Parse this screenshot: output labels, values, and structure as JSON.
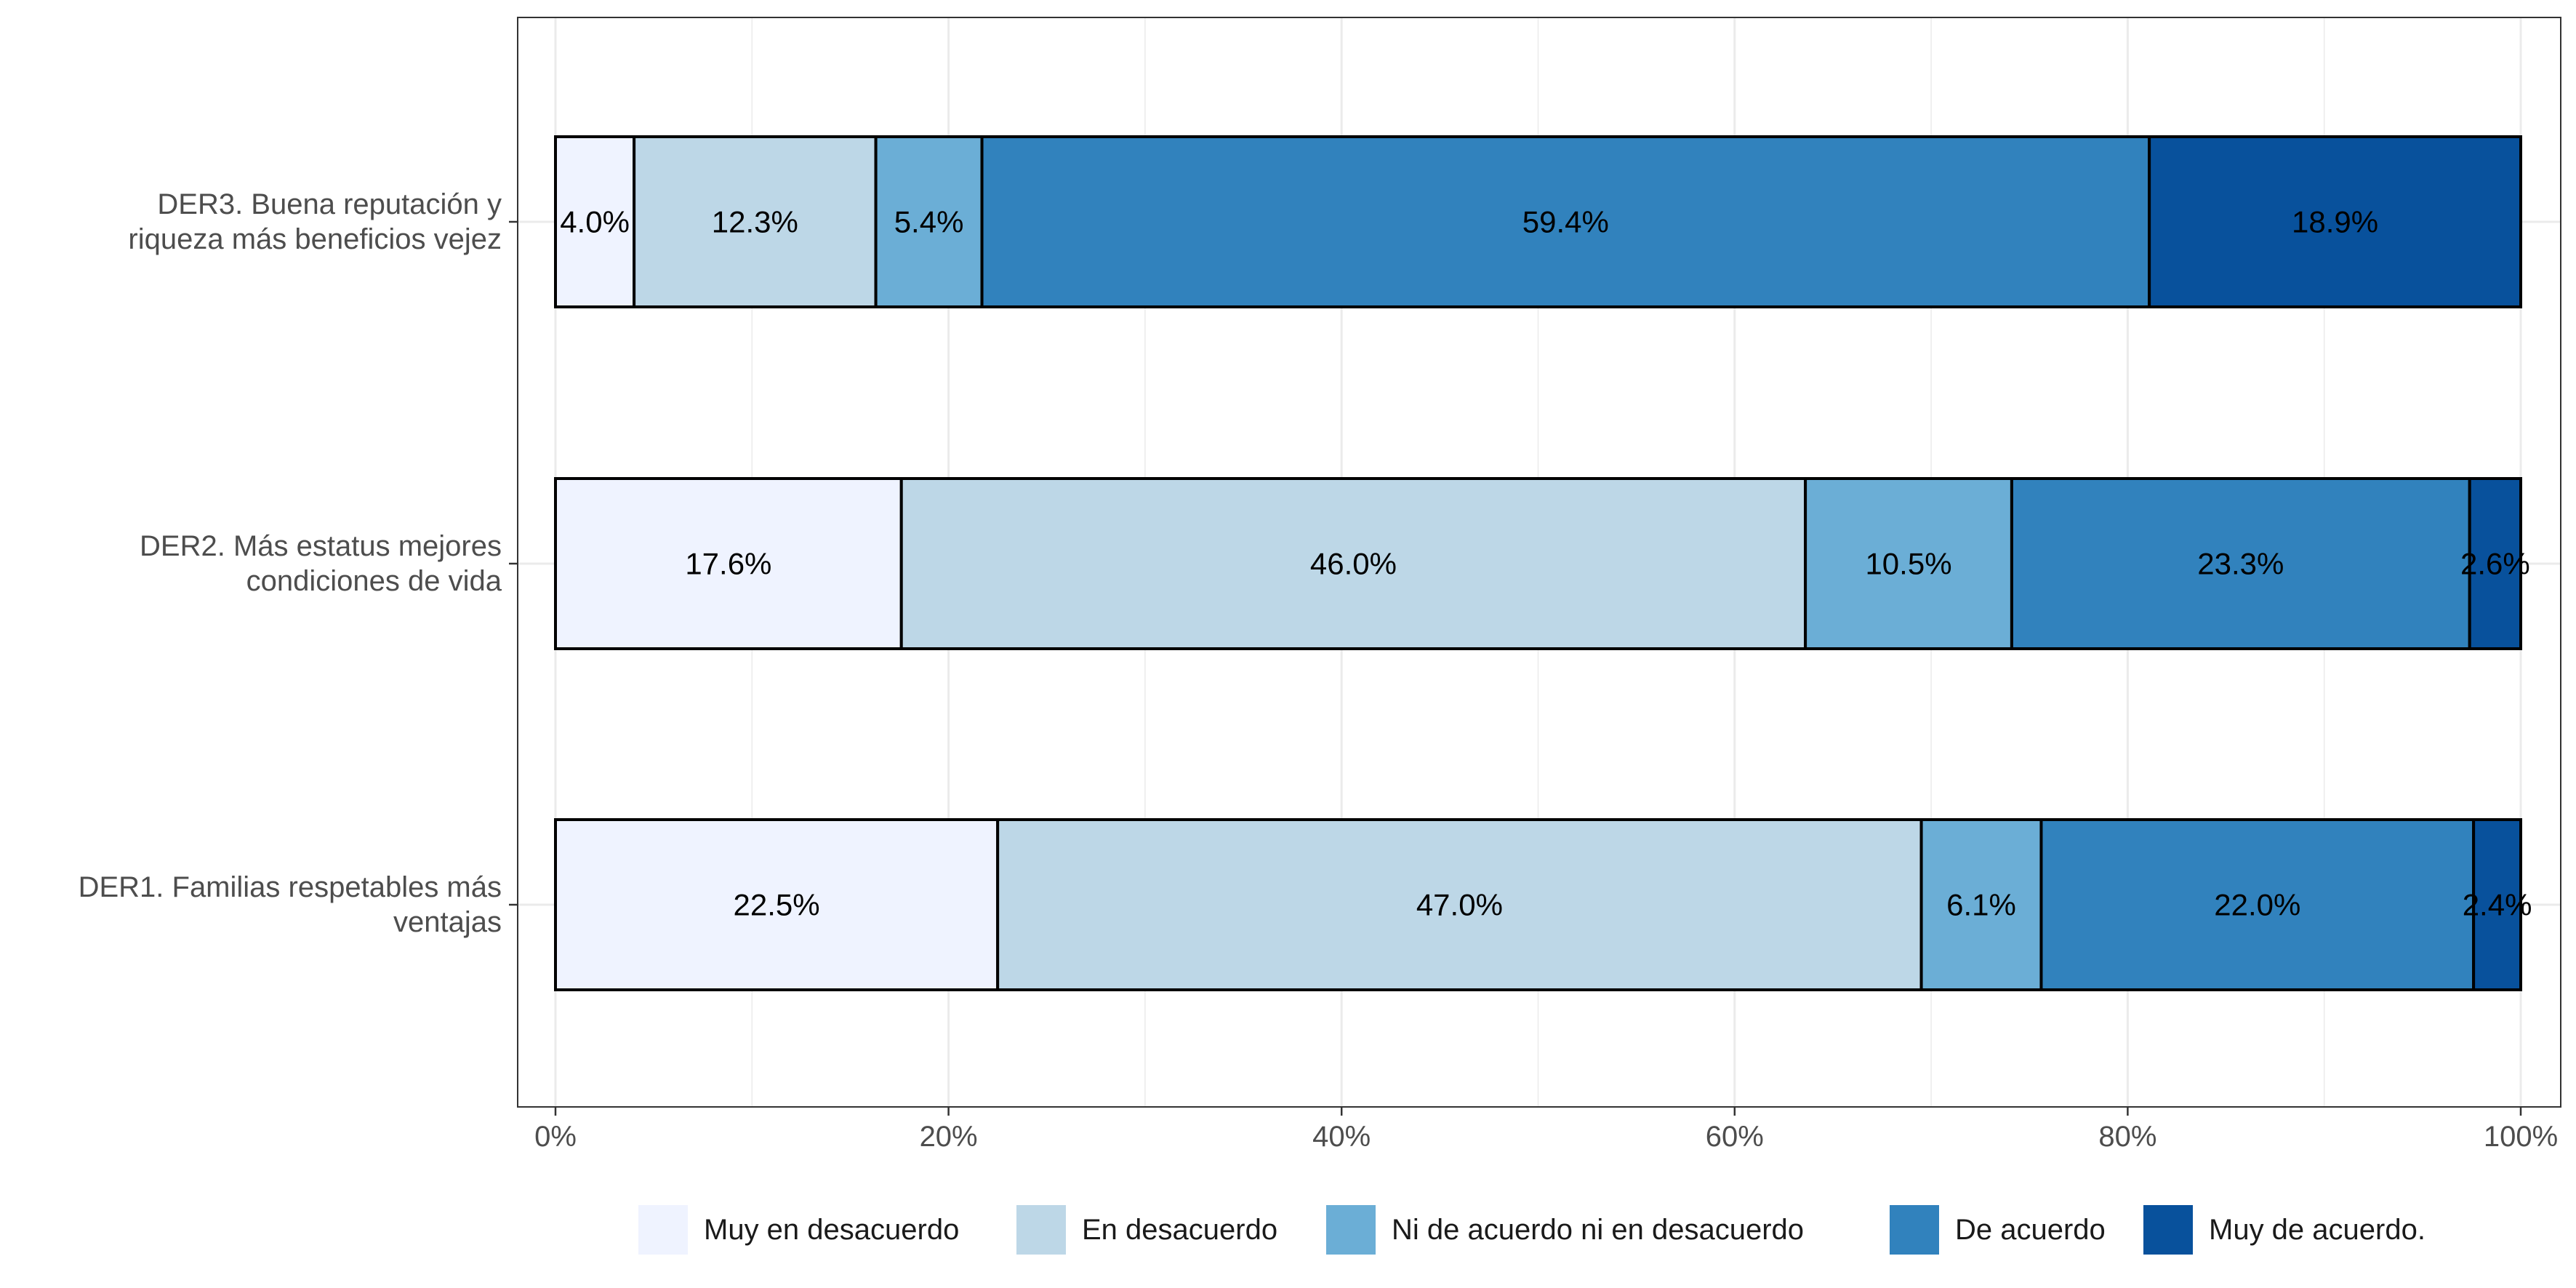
{
  "chart_data": {
    "type": "bar",
    "orientation": "horizontal",
    "stacked": true,
    "categories": [
      "DER3. Buena reputación y\nriqueza más beneficios vejez",
      "DER2. Más estatus mejores\ncondiciones de vida",
      "DER1. Familias respetables más\nventajas"
    ],
    "series": [
      {
        "name": "Muy en desacuerdo",
        "color": "#EFF3FF",
        "values": [
          4.0,
          17.6,
          22.5
        ]
      },
      {
        "name": "En desacuerdo",
        "color": "#BDD7E7",
        "values": [
          12.3,
          46.0,
          47.0
        ]
      },
      {
        "name": "Ni de acuerdo ni en desacuerdo",
        "color": "#6BAED6",
        "values": [
          5.4,
          10.5,
          6.1
        ]
      },
      {
        "name": "De acuerdo",
        "color": "#3182BD",
        "values": [
          59.4,
          23.3,
          22.0
        ]
      },
      {
        "name": "Muy de acuerdo.",
        "color": "#08519C",
        "values": [
          18.9,
          2.6,
          2.4
        ]
      }
    ],
    "data_labels": [
      [
        "4.0%",
        "12.3%",
        "5.4%",
        "59.4%",
        "18.9%"
      ],
      [
        "17.6%",
        "46.0%",
        "10.5%",
        "23.3%",
        "2.6%"
      ],
      [
        "22.5%",
        "47.0%",
        "6.1%",
        "22.0%",
        "2.4%"
      ]
    ],
    "x_ticks": [
      "0%",
      "20%",
      "40%",
      "60%",
      "80%",
      "100%"
    ],
    "xlim": [
      0,
      100
    ],
    "xlabel": "",
    "ylabel": "",
    "grid": true,
    "legend_position": "bottom"
  }
}
